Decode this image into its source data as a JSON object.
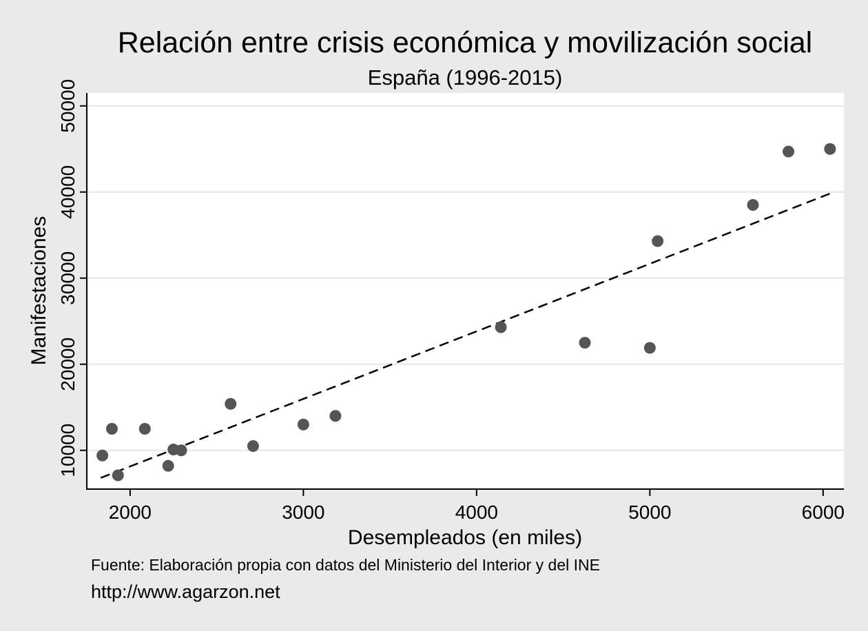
{
  "chart_data": {
    "type": "scatter",
    "title": "Relación entre crisis económica y movilización social",
    "subtitle": "España (1996-2015)",
    "xlabel": "Desempleados (en miles)",
    "ylabel": "Manifestaciones",
    "xlim": [
      1750,
      6120
    ],
    "ylim": [
      5500,
      51500
    ],
    "xticks": [
      2000,
      3000,
      4000,
      5000,
      6000
    ],
    "yticks": [
      10000,
      20000,
      30000,
      40000,
      50000
    ],
    "grid": "horizontal",
    "series": [
      {
        "points": [
          {
            "x": 1840,
            "y": 9400
          },
          {
            "x": 1930,
            "y": 7100
          },
          {
            "x": 1895,
            "y": 12500
          },
          {
            "x": 2085,
            "y": 12500
          },
          {
            "x": 2220,
            "y": 8200
          },
          {
            "x": 2250,
            "y": 10100
          },
          {
            "x": 2295,
            "y": 10000
          },
          {
            "x": 2580,
            "y": 15400
          },
          {
            "x": 2710,
            "y": 10500
          },
          {
            "x": 3000,
            "y": 13000
          },
          {
            "x": 3185,
            "y": 14000
          },
          {
            "x": 4140,
            "y": 24300
          },
          {
            "x": 4625,
            "y": 22500
          },
          {
            "x": 5000,
            "y": 21900
          },
          {
            "x": 5045,
            "y": 34300
          },
          {
            "x": 5595,
            "y": 38500
          },
          {
            "x": 5800,
            "y": 44700
          },
          {
            "x": 6040,
            "y": 45000
          }
        ],
        "color": "#555555"
      }
    ],
    "fit_line": {
      "style": "dashed",
      "color": "#000000",
      "from": {
        "x": 1830,
        "y": 6800
      },
      "to": {
        "x": 6050,
        "y": 39900
      }
    },
    "notes": {
      "source": "Fuente: Elaboración propia con datos del Ministerio del Interior y del INE",
      "url": "http://www.agarzon.net"
    }
  }
}
